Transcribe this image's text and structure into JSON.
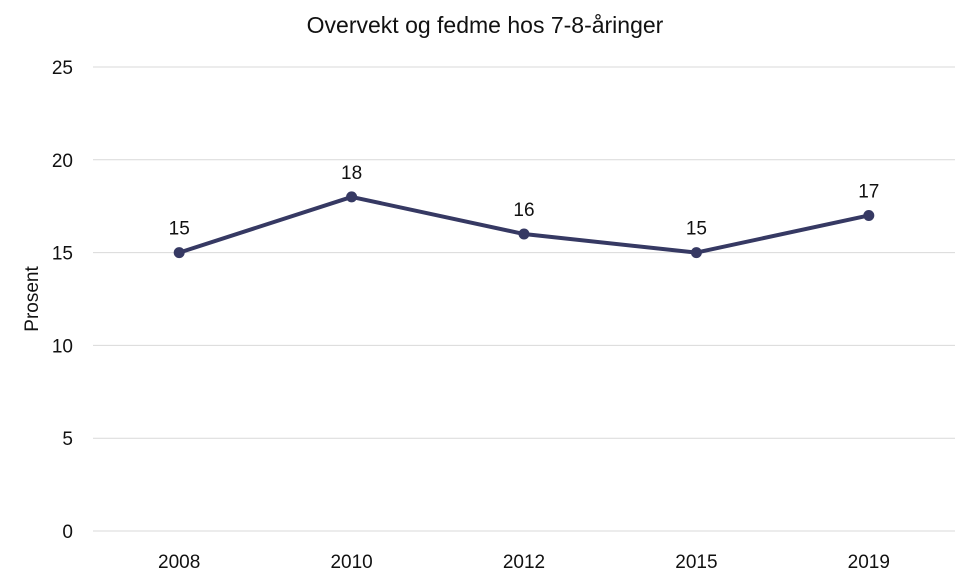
{
  "chart_data": {
    "type": "line",
    "title": "Overvekt og fedme hos 7-8-åringer",
    "xlabel": "",
    "ylabel": "Prosent",
    "categories": [
      "2008",
      "2010",
      "2012",
      "2015",
      "2019"
    ],
    "series": [
      {
        "values": [
          15,
          18,
          16,
          15,
          17
        ],
        "color": "#363963"
      }
    ],
    "data_labels": [
      "15",
      "18",
      "16",
      "15",
      "17"
    ],
    "ylim": [
      0,
      25
    ],
    "yticks": [
      "0",
      "5",
      "10",
      "15",
      "20",
      "25"
    ],
    "grid": true,
    "legend": "none"
  }
}
